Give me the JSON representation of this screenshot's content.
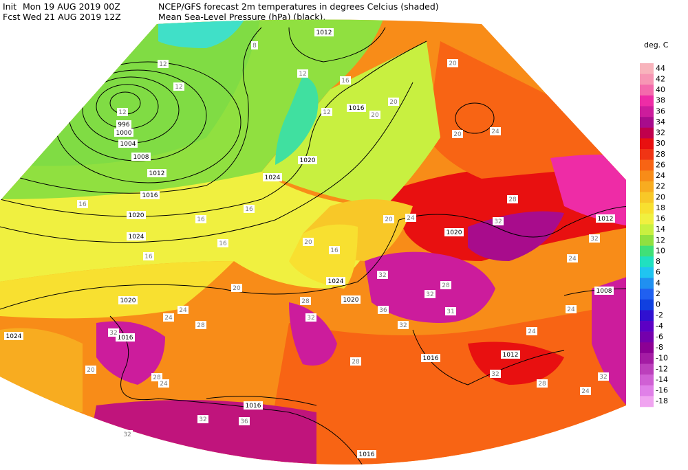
{
  "header": {
    "init_label": "Init",
    "init_time": "Mon 19 AUG 2019 00Z",
    "fcst_label": "Fcst",
    "fcst_time": "Wed 21 AUG 2019 12Z",
    "line1": "NCEP/GFS forecast 2m temperatures in degrees Celcius (shaded)",
    "line2": "Mean Sea-Level Pressure (hPa) (black)."
  },
  "color_scale": {
    "title": "deg. C",
    "levels": [
      44,
      42,
      40,
      38,
      36,
      34,
      32,
      30,
      28,
      26,
      24,
      22,
      20,
      18,
      16,
      14,
      12,
      10,
      8,
      6,
      4,
      2,
      0,
      -2,
      -4,
      -6,
      -8,
      -10,
      -12,
      -14,
      -16,
      -18
    ],
    "colors": [
      "#f8b4bc",
      "#f796b4",
      "#f46aac",
      "#ee2ca6",
      "#cc1c9c",
      "#a80c8c",
      "#c0004c",
      "#e81010",
      "#f03414",
      "#f86414",
      "#f88c18",
      "#f8ac20",
      "#f8c828",
      "#f8e030",
      "#f0f040",
      "#c8f040",
      "#90e040",
      "#40e078",
      "#20e0c0",
      "#20c4f0",
      "#2090f0",
      "#2060f0",
      "#1040e0",
      "#3010d0",
      "#5c00c4",
      "#7400ac",
      "#8c0094",
      "#a41ca4",
      "#bc40bc",
      "#d060d4",
      "#e080e8",
      "#f0a4f0"
    ]
  },
  "map": {
    "pressure_labels": [
      1012,
      996,
      1000,
      1004,
      1008,
      1012,
      1016,
      1020,
      1024,
      1024,
      1020,
      1016,
      1020,
      1012,
      1008,
      1024,
      1020,
      1020,
      1024,
      1016,
      1016,
      1012,
      1016,
      1016
    ],
    "temperature_labels": [
      8,
      12,
      12,
      12,
      12,
      12,
      16,
      20,
      20,
      20,
      20,
      24,
      16,
      16,
      16,
      20,
      24,
      16,
      20,
      16,
      16,
      32,
      28,
      32,
      24,
      32,
      32,
      28,
      20,
      24,
      28,
      24,
      28,
      32,
      32,
      36,
      32,
      31,
      24,
      24,
      20,
      28,
      24,
      28,
      32,
      28,
      32,
      24,
      36,
      32,
      32
    ]
  }
}
